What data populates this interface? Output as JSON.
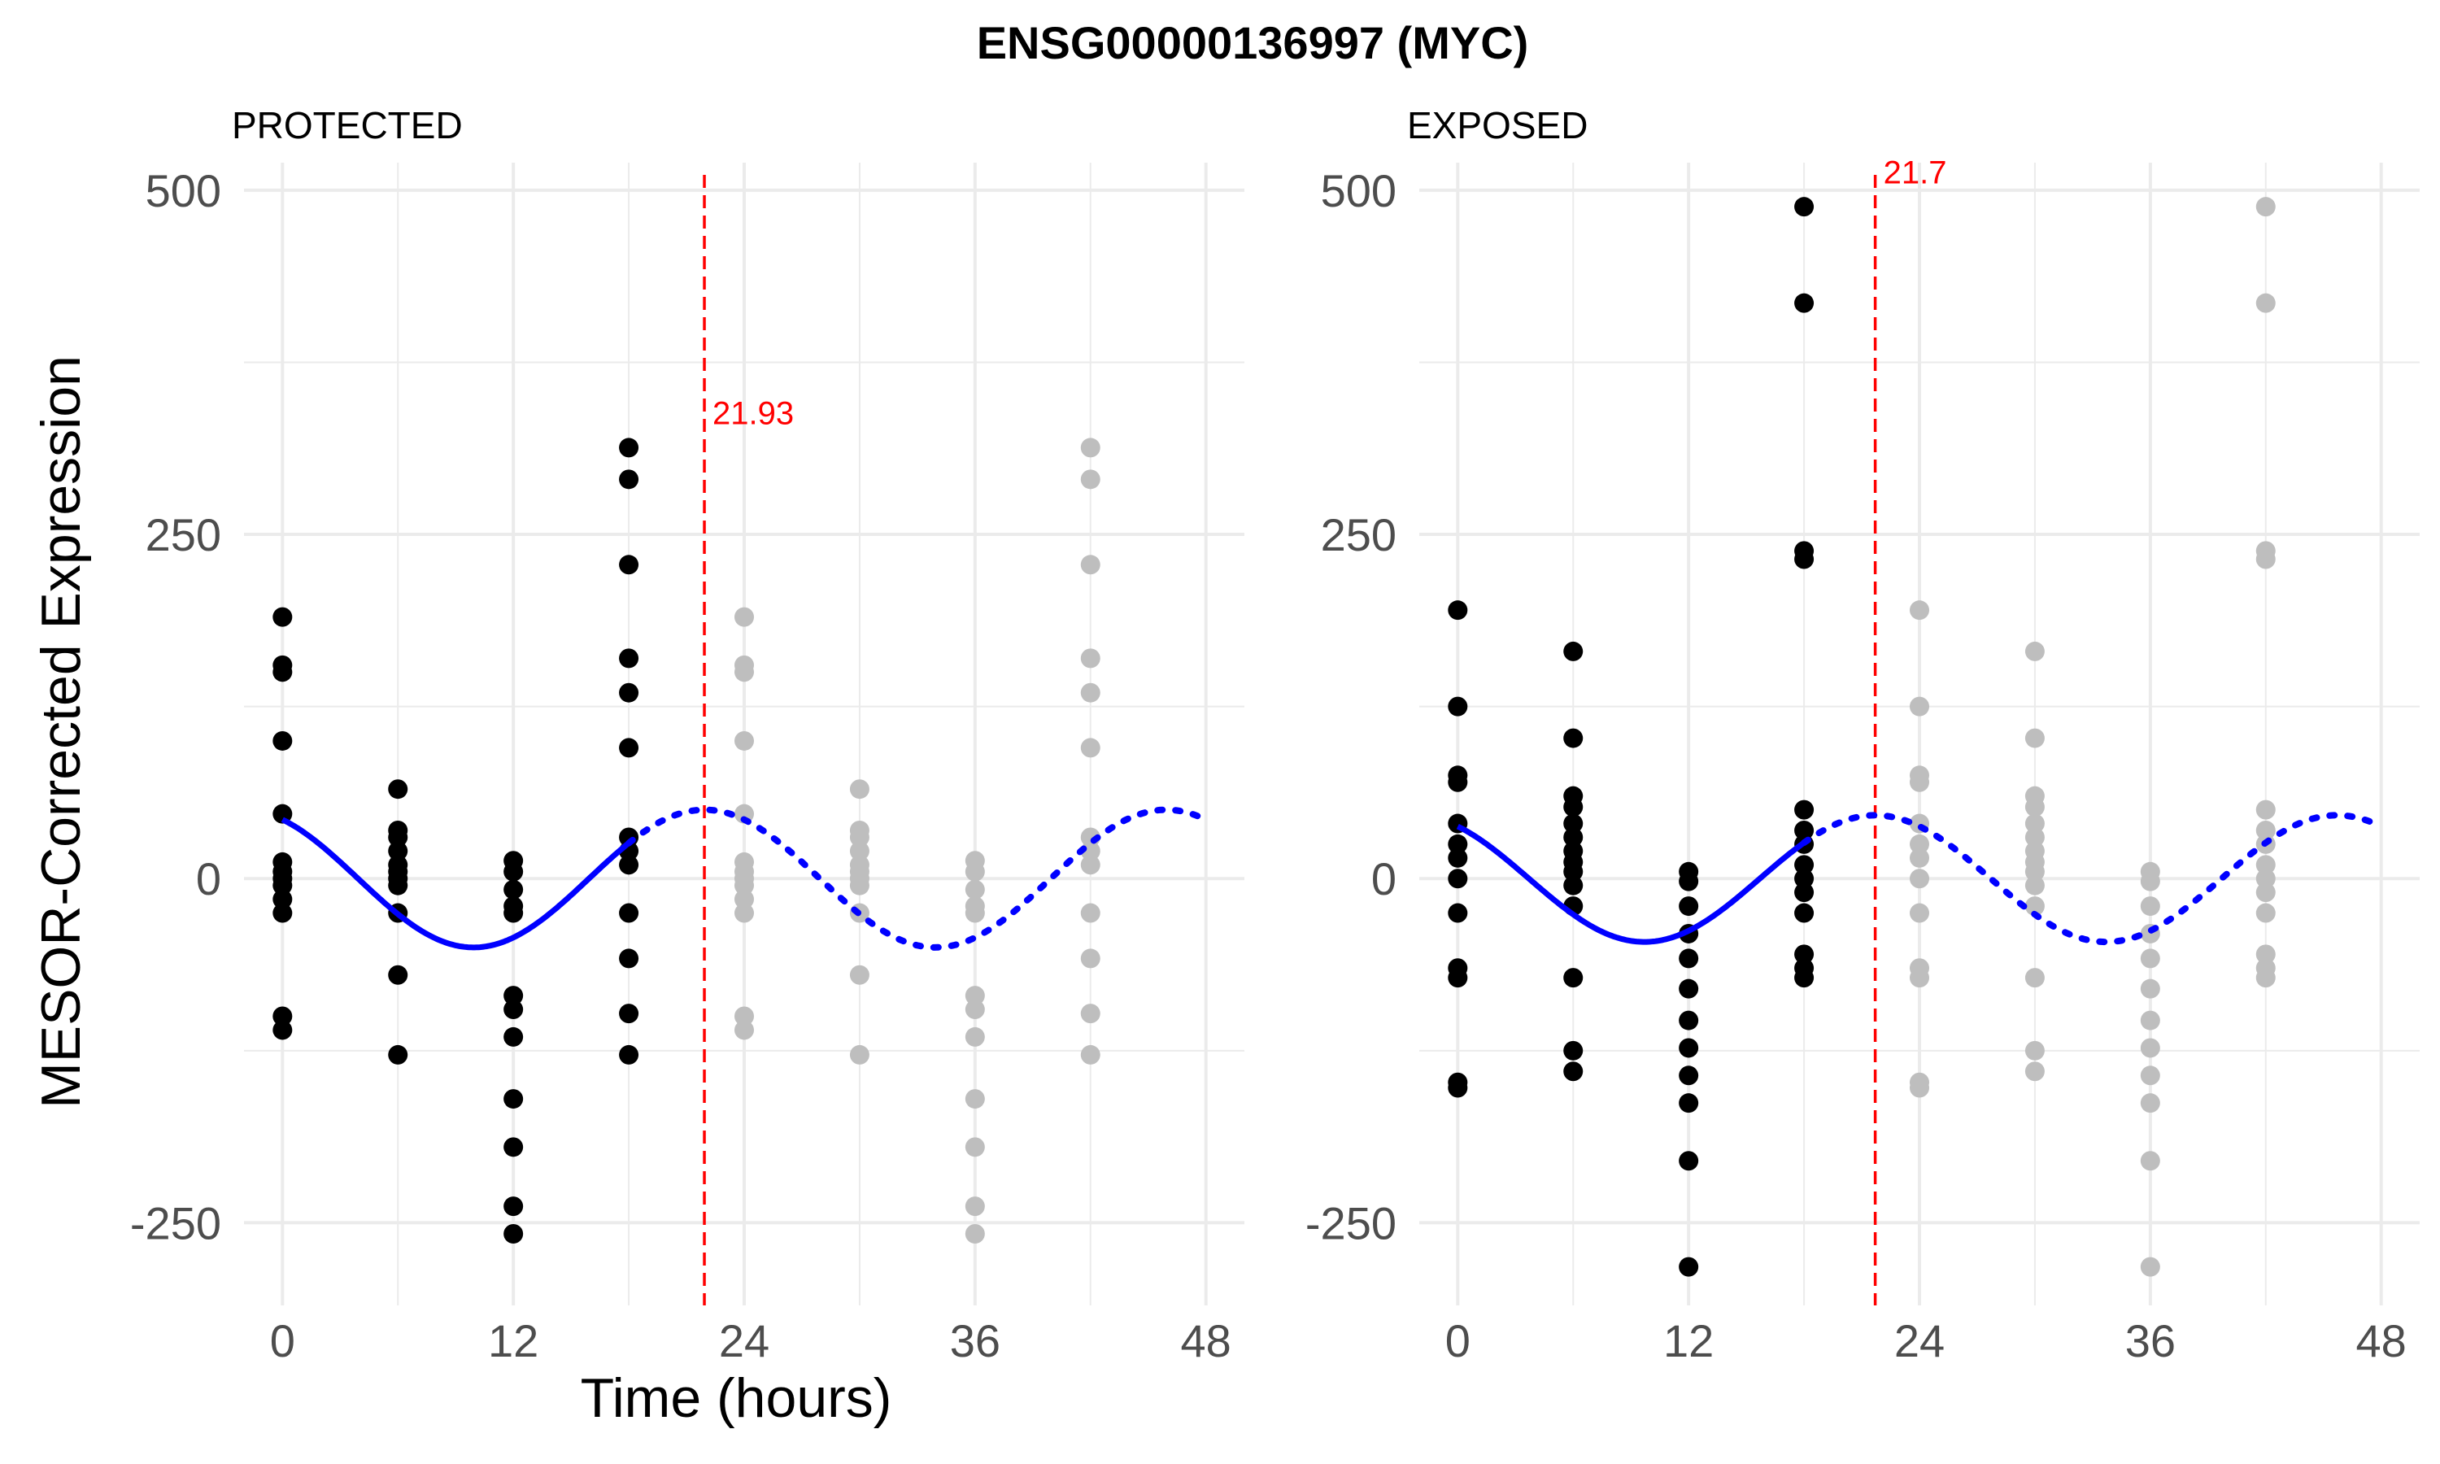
{
  "chart_data": {
    "type": "scatter",
    "title": "ENSG00000136997 (MYC)",
    "xlabel": "Time (hours)",
    "ylabel": "MESOR-Corrected Expression",
    "xlim": [
      -2,
      50
    ],
    "ylim": [
      -310,
      520
    ],
    "x_ticks": [
      0,
      12,
      24,
      36,
      48
    ],
    "x_tick_labels": [
      "0",
      "12",
      "24",
      "36",
      "48"
    ],
    "y_ticks": [
      -250,
      0,
      250,
      500
    ],
    "y_tick_labels": [
      "-250",
      "0",
      "250",
      "500"
    ],
    "grid": true,
    "colors": {
      "observed_points": "#000000",
      "repeated_points": "#bebebe",
      "fit_line": "#0000ff",
      "peak_line": "#ff0000",
      "grid": "#ebebeb"
    },
    "panels": [
      {
        "title": "PROTECTED",
        "peak_time": 21.93,
        "peak_label": "21.93",
        "fit": {
          "mesor": 0,
          "amplitude": 50,
          "peak": 21.93,
          "period": 24,
          "observed_range": [
            0,
            18
          ],
          "extrapolated_range": [
            18,
            48
          ]
        },
        "timepoints": [
          {
            "t": 0,
            "values": [
              190,
              155,
              150,
              100,
              47,
              12,
              5,
              0,
              -5,
              -15,
              -25,
              -100,
              -110
            ]
          },
          {
            "t": 6,
            "values": [
              65,
              35,
              30,
              20,
              10,
              5,
              0,
              -5,
              -25,
              -70,
              -128
            ]
          },
          {
            "t": 12,
            "values": [
              13,
              5,
              -8,
              -20,
              -25,
              -85,
              -95,
              -115,
              -160,
              -195,
              -238,
              -258
            ]
          },
          {
            "t": 18,
            "values": [
              313,
              290,
              228,
              160,
              135,
              95,
              30,
              20,
              10,
              -25,
              -58,
              -98,
              -128
            ]
          }
        ],
        "repeat_offset_hours": 24
      },
      {
        "title": "EXPOSED",
        "peak_time": 21.7,
        "peak_label": "21.7",
        "fit": {
          "mesor": 0,
          "amplitude": 46,
          "peak": 21.7,
          "period": 24,
          "observed_range": [
            0,
            18
          ],
          "extrapolated_range": [
            18,
            48
          ]
        },
        "timepoints": [
          {
            "t": 0,
            "values": [
              195,
              125,
              75,
              70,
              40,
              25,
              15,
              0,
              -25,
              -65,
              -72,
              -148,
              -152
            ]
          },
          {
            "t": 6,
            "values": [
              165,
              102,
              60,
              52,
              40,
              30,
              20,
              12,
              5,
              -5,
              -20,
              -72,
              -125,
              -140
            ]
          },
          {
            "t": 12,
            "values": [
              5,
              -2,
              -20,
              -40,
              -58,
              -80,
              -103,
              -123,
              -143,
              -163,
              -205,
              -282
            ]
          },
          {
            "t": 18,
            "values": [
              488,
              418,
              238,
              232,
              50,
              35,
              25,
              10,
              0,
              -10,
              -25,
              -55,
              -65,
              -72
            ]
          }
        ],
        "repeat_offset_hours": 24
      }
    ]
  }
}
